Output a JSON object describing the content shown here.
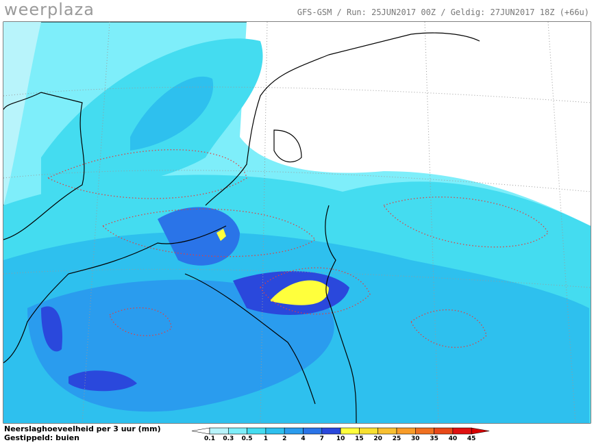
{
  "header": {
    "brand": "weerplaza",
    "run_info": "GFS-GSM / Run: 25JUN2017 00Z / Geldig: 27JUN2017 18Z (+66u)"
  },
  "footer": {
    "line1": "Neerslaghoeveelheid per 3 uur (mm)",
    "line2": "Gestippeld: buien"
  },
  "legend": {
    "labels": [
      "0.1",
      "0.3",
      "0.5",
      "1",
      "2",
      "4",
      "7",
      "10",
      "15",
      "20",
      "25",
      "30",
      "35",
      "40",
      "45"
    ],
    "colors": [
      "#ffffff",
      "#b8f4fb",
      "#7eeefa",
      "#44dcf0",
      "#2ec0ee",
      "#2a9cee",
      "#2a74e8",
      "#2a48dc",
      "#ffff3c",
      "#f8e030",
      "#f8c030",
      "#f89c28",
      "#f07020",
      "#e84818",
      "#e01010",
      "#d80000"
    ]
  }
}
